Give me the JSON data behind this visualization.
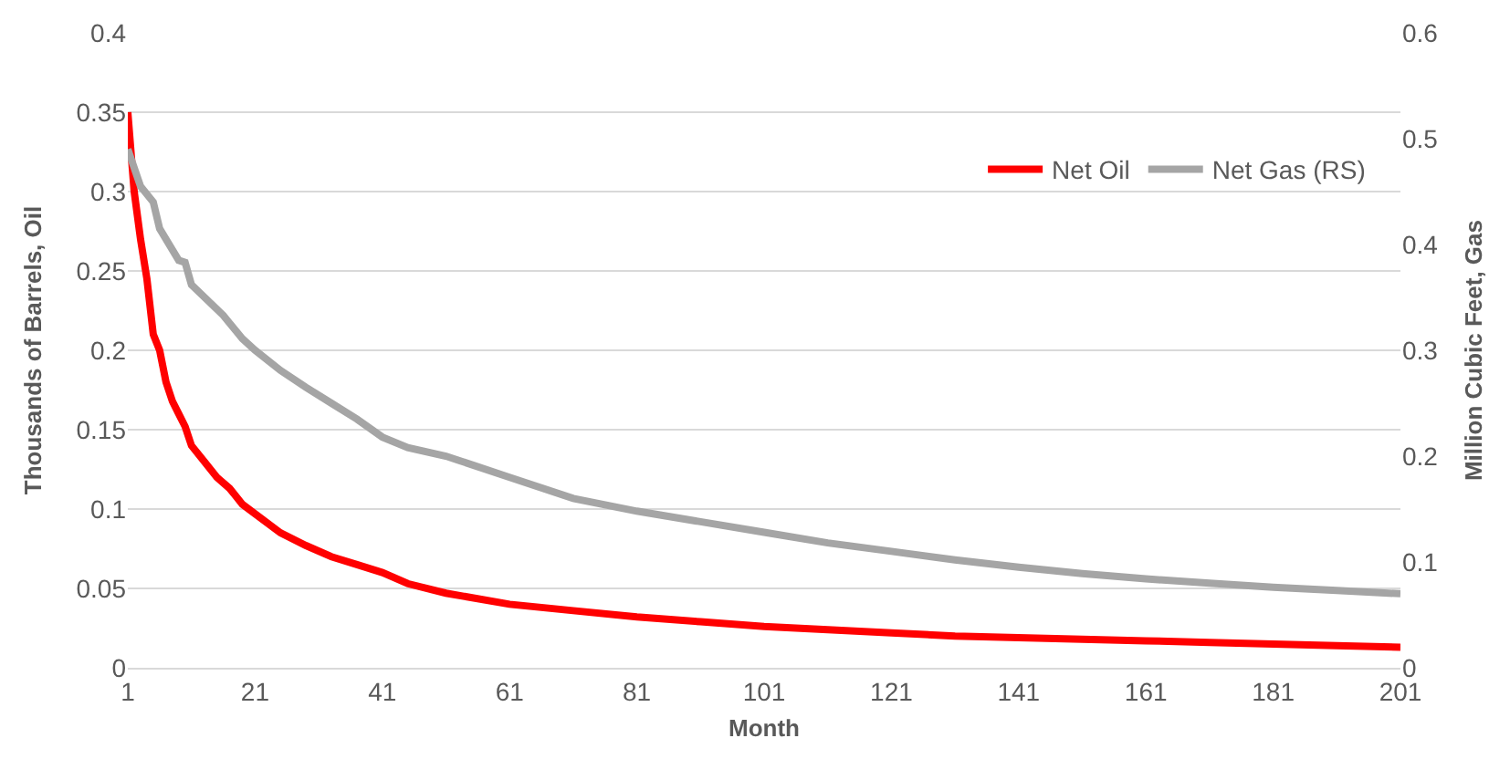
{
  "chart_data": {
    "type": "line",
    "xlabel": "Month",
    "ylabel": "Thousands of Barrels, Oil",
    "y2label": "Million Cubic Feet, Gas",
    "xlim": [
      1,
      201
    ],
    "xticks": [
      1,
      21,
      41,
      61,
      81,
      101,
      121,
      141,
      161,
      181,
      201
    ],
    "ylim": [
      0,
      0.4
    ],
    "yticks": [
      0,
      0.05,
      0.1,
      0.15,
      0.2,
      0.25,
      0.3,
      0.35,
      0.4
    ],
    "y2lim": [
      0,
      0.6
    ],
    "y2ticks": [
      0,
      0.1,
      0.2,
      0.3,
      0.4,
      0.5,
      0.6
    ],
    "grid": "y",
    "legend": "top right",
    "marker": "none",
    "line_style": "solid",
    "series": [
      {
        "name": "Net Oil",
        "color": "#ff0000",
        "x": [
          1,
          2,
          3,
          4,
          5,
          6,
          7,
          8,
          9,
          10,
          11,
          13,
          15,
          17,
          19,
          21,
          25,
          29,
          33,
          37,
          41,
          45,
          51,
          61,
          71,
          81,
          91,
          101,
          111,
          121,
          131,
          141,
          151,
          161,
          171,
          181,
          191,
          201
        ],
        "values": [
          0.35,
          0.3,
          0.27,
          0.245,
          0.21,
          0.2,
          0.18,
          0.168,
          0.16,
          0.152,
          0.14,
          0.13,
          0.12,
          0.113,
          0.103,
          0.097,
          0.085,
          0.077,
          0.07,
          0.065,
          0.06,
          0.053,
          0.047,
          0.04,
          0.036,
          0.032,
          0.029,
          0.026,
          0.024,
          0.022,
          0.02,
          0.019,
          0.018,
          0.017,
          0.016,
          0.015,
          0.014,
          0.013
        ]
      },
      {
        "name": "Net Gas (RS)",
        "color": "#a5a5a5",
        "axis": "y2",
        "x": [
          1,
          3,
          5,
          6,
          9,
          10,
          11,
          16,
          19,
          21,
          25,
          29,
          33,
          37,
          41,
          45,
          51,
          61,
          71,
          81,
          91,
          101,
          111,
          121,
          131,
          141,
          151,
          161,
          171,
          181,
          191,
          201
        ],
        "values": [
          0.49,
          0.455,
          0.44,
          0.415,
          0.385,
          0.383,
          0.362,
          0.333,
          0.311,
          0.3,
          0.281,
          0.265,
          0.25,
          0.235,
          0.218,
          0.208,
          0.2,
          0.18,
          0.16,
          0.148,
          0.138,
          0.128,
          0.118,
          0.11,
          0.102,
          0.095,
          0.089,
          0.084,
          0.08,
          0.076,
          0.073,
          0.07
        ]
      }
    ]
  }
}
